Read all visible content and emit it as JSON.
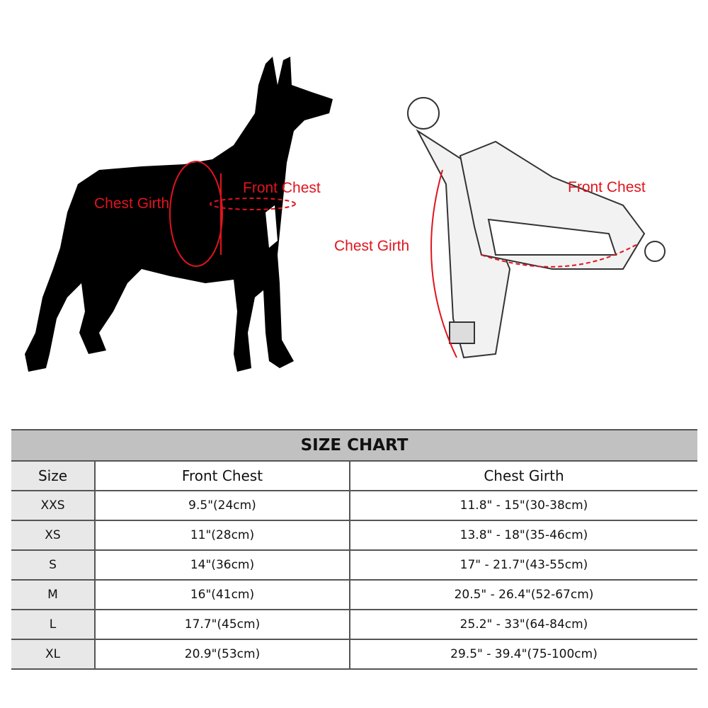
{
  "illustration": {
    "dog_labels": {
      "chest_girth": "Chest Girth",
      "front_chest": "Front Chest"
    },
    "harness_labels": {
      "chest_girth": "Chest Girth",
      "front_chest": "Front Chest"
    },
    "accent_color": "#e0141e"
  },
  "table": {
    "title": "SIZE CHART",
    "headers": [
      "Size",
      "Front Chest",
      "Chest Girth"
    ],
    "rows": [
      [
        "XXS",
        "9.5\"(24cm)",
        "11.8\" - 15\"(30-38cm)"
      ],
      [
        "XS",
        "11\"(28cm)",
        "13.8\" - 18\"(35-46cm)"
      ],
      [
        "S",
        "14\"(36cm)",
        "17\" - 21.7\"(43-55cm)"
      ],
      [
        "M",
        "16\"(41cm)",
        "20.5\" - 26.4\"(52-67cm)"
      ],
      [
        "L",
        "17.7\"(45cm)",
        "25.2\" - 33\"(64-84cm)"
      ],
      [
        "XL",
        "20.9\"(53cm)",
        "29.5\" - 39.4\"(75-100cm)"
      ]
    ]
  }
}
